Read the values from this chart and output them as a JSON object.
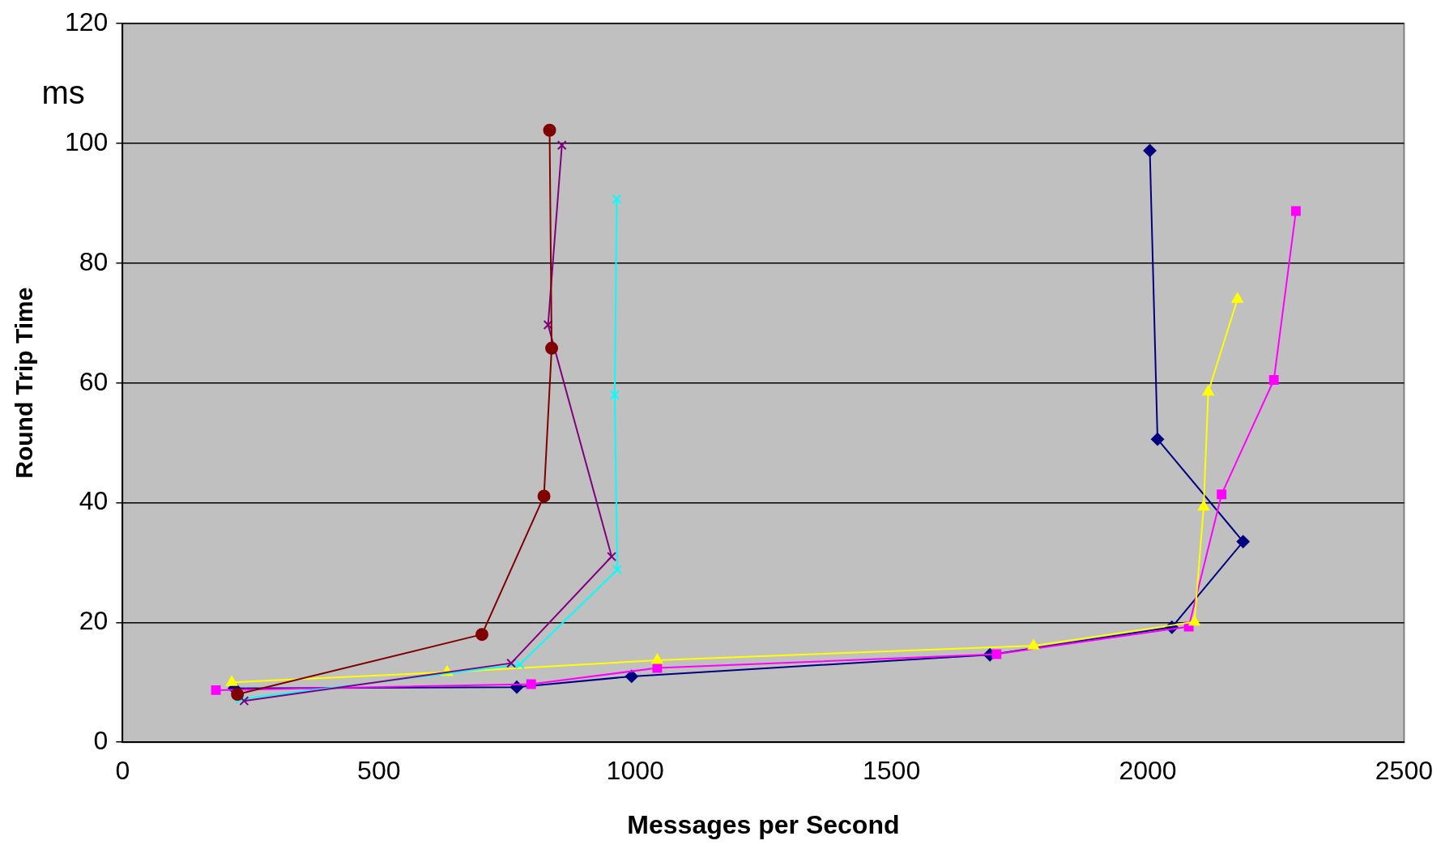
{
  "chart_data": {
    "type": "line",
    "xlabel": "Messages per Second",
    "ylabel": "Round Trip Time",
    "annotations": [
      "ms"
    ],
    "xlim": [
      0,
      2500
    ],
    "xticks": [
      0,
      500,
      1000,
      1500,
      2000,
      2500
    ],
    "ylim": [
      0,
      120
    ],
    "yticks": [
      0,
      20,
      40,
      60,
      80,
      100,
      120
    ],
    "grid": "y",
    "legend": false,
    "line_style": "solid",
    "series": [
      {
        "color": "#000080",
        "marker": "diamond",
        "x": [
          218,
          769,
          993,
          1692,
          2047,
          2186,
          2019,
          2004
        ],
        "values": [
          9.0,
          9.2,
          11.0,
          14.6,
          19.2,
          33.5,
          50.6,
          98.8
        ]
      },
      {
        "color": "#ff00ff",
        "marker": "square",
        "x": [
          182,
          797,
          1043,
          1705,
          2080,
          2144,
          2246,
          2289
        ],
        "values": [
          8.7,
          9.7,
          12.4,
          14.7,
          19.3,
          41.4,
          60.5,
          88.7
        ]
      },
      {
        "color": "#ffff00",
        "marker": "triangle",
        "x": [
          213,
          633,
          1043,
          1777,
          2091,
          2109,
          2118,
          2175
        ],
        "values": [
          10.0,
          11.7,
          13.7,
          16.1,
          20.1,
          39.3,
          58.5,
          74.0
        ]
      },
      {
        "color": "#00ffff",
        "marker": "cross",
        "x": [
          229,
          775,
          965,
          960,
          964
        ],
        "values": [
          7.2,
          13.0,
          28.8,
          58.0,
          90.7
        ]
      },
      {
        "color": "#800080",
        "marker": "cross",
        "x": [
          237,
          758,
          954,
          830,
          857
        ],
        "values": [
          6.9,
          13.2,
          31.0,
          69.7,
          99.7
        ]
      },
      {
        "color": "#800000",
        "marker": "circle",
        "x": [
          224,
          701,
          822,
          837,
          833
        ],
        "values": [
          8.0,
          18.0,
          41.1,
          65.8,
          102.2
        ]
      }
    ]
  }
}
